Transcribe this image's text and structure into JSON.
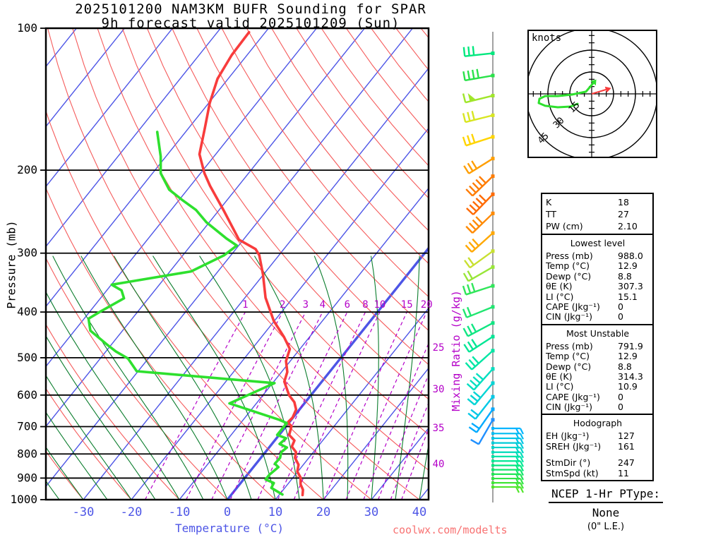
{
  "header": {
    "title_line1": "2025101200 NAM3KM BUFR Sounding for SPAR",
    "title_line2": "9h forecast valid 2025101209 (Sun)"
  },
  "watermark": "coolwx.com/modelts",
  "axes": {
    "pressure_label": "Pressure (mb)",
    "pressure_ticks": [
      100,
      200,
      300,
      400,
      500,
      600,
      700,
      800,
      900,
      1000
    ],
    "temperature_label": "Temperature (°C)",
    "temperature_ticks": [
      -30,
      -20,
      -10,
      0,
      10,
      20,
      30,
      40
    ],
    "mixing_ratio_label": "Mixing Ratio (g/kg)",
    "mixing_ratio_ticks": [
      1,
      2,
      3,
      4,
      6,
      8,
      10,
      15,
      20
    ],
    "mixing_ratio_right_ticks": [
      25,
      30,
      35,
      40
    ]
  },
  "chart_data": {
    "type": "line",
    "title": "Skew-T log-P sounding",
    "xlabel": "Temperature (°C)",
    "ylabel": "Pressure (mb)",
    "x_range_c": [
      -40,
      45
    ],
    "pressure_range_mb": [
      100,
      1000
    ],
    "highlight_isotherm_c": 0,
    "series": [
      {
        "name": "temperature",
        "color": "#f83c3c",
        "points": [
          [
            102,
            -73.4
          ],
          [
            114,
            -73.2
          ],
          [
            128,
            -72.2
          ],
          [
            144,
            -69.8
          ],
          [
            163,
            -66.6
          ],
          [
            185,
            -63.4
          ],
          [
            203,
            -59.2
          ],
          [
            216,
            -55.9
          ],
          [
            243,
            -49.1
          ],
          [
            281,
            -40.9
          ],
          [
            294,
            -35.9
          ],
          [
            303,
            -34.1
          ],
          [
            333,
            -30.1
          ],
          [
            373,
            -25.7
          ],
          [
            418,
            -20.1
          ],
          [
            452,
            -15.3
          ],
          [
            479,
            -12.1
          ],
          [
            508,
            -10.9
          ],
          [
            536,
            -8.8
          ],
          [
            562,
            -7.8
          ],
          [
            601,
            -4.5
          ],
          [
            621,
            -2.3
          ],
          [
            644,
            -0.7
          ],
          [
            670,
            -0.1
          ],
          [
            686,
            -0.3
          ],
          [
            698,
            1.1
          ],
          [
            729,
            2.1
          ],
          [
            749,
            4.1
          ],
          [
            772,
            4.6
          ],
          [
            793,
            6.4
          ],
          [
            815,
            7.1
          ],
          [
            843,
            9.0
          ],
          [
            872,
            9.9
          ],
          [
            898,
            11.6
          ],
          [
            928,
            12.7
          ],
          [
            953,
            14.1
          ],
          [
            978,
            14.9
          ]
        ]
      },
      {
        "name": "dewpoint",
        "color": "#2ee02e",
        "points": [
          [
            166,
            -75.9
          ],
          [
            187,
            -71.1
          ],
          [
            203,
            -68.3
          ],
          [
            220,
            -63.8
          ],
          [
            231,
            -59.5
          ],
          [
            243,
            -54.8
          ],
          [
            258,
            -50.6
          ],
          [
            279,
            -43.8
          ],
          [
            289,
            -40.4
          ],
          [
            303,
            -41.4
          ],
          [
            328,
            -45.6
          ],
          [
            350,
            -59.9
          ],
          [
            360,
            -56.9
          ],
          [
            374,
            -55.1
          ],
          [
            400,
            -57.9
          ],
          [
            413,
            -59.1
          ],
          [
            438,
            -56.7
          ],
          [
            469,
            -50.9
          ],
          [
            485,
            -47.9
          ],
          [
            502,
            -44.2
          ],
          [
            534,
            -40.3
          ],
          [
            566,
            -9.6
          ],
          [
            625,
            -15.6
          ],
          [
            677,
            -2.5
          ],
          [
            688,
            -0.4
          ],
          [
            729,
            -0.4
          ],
          [
            741,
            2.0
          ],
          [
            762,
            1.6
          ],
          [
            775,
            3.7
          ],
          [
            793,
            3.3
          ],
          [
            815,
            4.0
          ],
          [
            839,
            3.9
          ],
          [
            853,
            5.2
          ],
          [
            885,
            4.6
          ],
          [
            906,
            4.6
          ],
          [
            922,
            6.9
          ],
          [
            944,
            7.2
          ],
          [
            975,
            10.6
          ]
        ]
      }
    ]
  },
  "wind_barbs": {
    "column_color": "#8a8a8a",
    "left": [
      {
        "p": 113,
        "color": "#00e87e",
        "ticks": 3,
        "tilt": 6
      },
      {
        "p": 126,
        "color": "#2ae24a",
        "ticks": 4,
        "tilt": 10
      },
      {
        "p": 139,
        "color": "#a0e62a",
        "ticks": 1,
        "tilt": 14,
        "flag": true
      },
      {
        "p": 153,
        "color": "#d8e622",
        "ticks": 3,
        "tilt": 14
      },
      {
        "p": 170,
        "color": "#ffd400",
        "ticks": 3,
        "tilt": 18
      },
      {
        "p": 189,
        "color": "#ff9e00",
        "ticks": 3,
        "tilt": 32
      },
      {
        "p": 206,
        "color": "#ff7c00",
        "ticks": 5,
        "tilt": 44
      },
      {
        "p": 225,
        "color": "#ff6a00",
        "ticks": 5,
        "tilt": 46
      },
      {
        "p": 247,
        "color": "#ff8a00",
        "ticks": 4,
        "tilt": 44
      },
      {
        "p": 272,
        "color": "#ffa800",
        "ticks": 3,
        "tilt": 42
      },
      {
        "p": 297,
        "color": "#c8e030",
        "ticks": 2,
        "tilt": 36
      },
      {
        "p": 321,
        "color": "#98e638",
        "ticks": 2,
        "tilt": 30
      },
      {
        "p": 352,
        "color": "#30e65a",
        "ticks": 3,
        "tilt": 18
      },
      {
        "p": 390,
        "color": "#20e670",
        "ticks": 2,
        "tilt": 22
      },
      {
        "p": 422,
        "color": "#10e682",
        "ticks": 3,
        "tilt": 28
      },
      {
        "p": 451,
        "color": "#00e694",
        "ticks": 3,
        "tilt": 33
      },
      {
        "p": 483,
        "color": "#00e6a4",
        "ticks": 3,
        "tilt": 42
      },
      {
        "p": 528,
        "color": "#00dfc0",
        "ticks": 4,
        "tilt": 48
      },
      {
        "p": 566,
        "color": "#00d4d4",
        "ticks": 3,
        "tilt": 50
      },
      {
        "p": 605,
        "color": "#00c8e6",
        "ticks": 2,
        "tilt": 52
      },
      {
        "p": 643,
        "color": "#00aaff",
        "ticks": 2,
        "tilt": 55
      },
      {
        "p": 677,
        "color": "#2090ff",
        "ticks": 1,
        "tilt": 60
      }
    ],
    "right_stack": [
      {
        "p": 706,
        "color": "#00b4ff"
      },
      {
        "p": 724,
        "color": "#00bcf2"
      },
      {
        "p": 741,
        "color": "#00c4e6"
      },
      {
        "p": 758,
        "color": "#00ccd8"
      },
      {
        "p": 775,
        "color": "#00d4ca"
      },
      {
        "p": 793,
        "color": "#00dcba"
      },
      {
        "p": 810,
        "color": "#00e4a8"
      },
      {
        "p": 828,
        "color": "#00e894"
      },
      {
        "p": 846,
        "color": "#00e880"
      },
      {
        "p": 864,
        "color": "#12e66c"
      },
      {
        "p": 883,
        "color": "#22e658"
      },
      {
        "p": 902,
        "color": "#32e646"
      },
      {
        "p": 921,
        "color": "#42e638"
      },
      {
        "p": 940,
        "color": "#52e62c"
      }
    ]
  },
  "hodograph": {
    "unit_label": "knots",
    "rings_kt": [
      15,
      30,
      45
    ],
    "ring_labels": [
      "15",
      "30",
      "45"
    ],
    "trace_color": "#2ee02e",
    "storm_color": "#f83c3c",
    "trace_kt": [
      [
        1.0,
        7.3
      ],
      [
        -3.9,
        1.5
      ],
      [
        -13.5,
        -0.5
      ],
      [
        -23.2,
        -1.5
      ],
      [
        -31.9,
        -1.5
      ],
      [
        -35.8,
        -3.4
      ],
      [
        -36.3,
        -6.3
      ],
      [
        -31.9,
        -8.2
      ],
      [
        -23.2,
        -9.2
      ],
      [
        -14.5,
        -8.7
      ],
      [
        -9.7,
        -6.8
      ]
    ],
    "storm_motion_kt": [
      9.7,
      2.9
    ]
  },
  "stats": {
    "sections": [
      {
        "title": "",
        "rows": [
          {
            "label": "K",
            "value": "18"
          },
          {
            "label": "TT",
            "value": "27"
          },
          {
            "label": "PW (cm)",
            "value": "2.10"
          }
        ]
      },
      {
        "title": "Lowest level",
        "rows": [
          {
            "label": "Press (mb)",
            "value": "988.0"
          },
          {
            "label": "Temp (°C)",
            "value": "12.9"
          },
          {
            "label": "Dewp (°C)",
            "value": "8.8"
          },
          {
            "label": "θE (K)",
            "value": "307.3"
          },
          {
            "label": "LI (°C)",
            "value": "15.1"
          },
          {
            "label": "CAPE (Jkg⁻¹)",
            "value": "0"
          },
          {
            "label": "CIN (Jkg⁻¹)",
            "value": "0"
          }
        ]
      },
      {
        "title": "Most Unstable",
        "rows": [
          {
            "label": "Press (mb)",
            "value": "791.9"
          },
          {
            "label": "Temp (°C)",
            "value": "12.9"
          },
          {
            "label": "Dewp (°C)",
            "value": "8.8"
          },
          {
            "label": "θE (K)",
            "value": "314.3"
          },
          {
            "label": "LI (°C)",
            "value": "10.9"
          },
          {
            "label": "CAPE (Jkg⁻¹)",
            "value": "0"
          },
          {
            "label": "CIN (Jkg⁻¹)",
            "value": "0"
          }
        ]
      },
      {
        "title": "Hodograph",
        "rows": [
          {
            "label": "EH (Jkg⁻¹)",
            "value": "127"
          },
          {
            "label": "SREH (Jkg⁻¹)",
            "value": "161"
          },
          {
            "label": "StmDir (°)",
            "value": "247"
          },
          {
            "label": "StmSpd (kt)",
            "value": "11"
          }
        ]
      }
    ]
  },
  "ptype": {
    "title": "NCEP 1-Hr PType:",
    "value": "None",
    "note": "(0\" L.E.)"
  },
  "colors": {
    "isotherm": "#4d55e6",
    "dry_adiabat": "#f55b5b",
    "moist_adiabat": "#0b7d2d",
    "mixing_ratio": "#b400c8",
    "axis_text_temp": "#4d55e6",
    "frame": "#000000"
  }
}
